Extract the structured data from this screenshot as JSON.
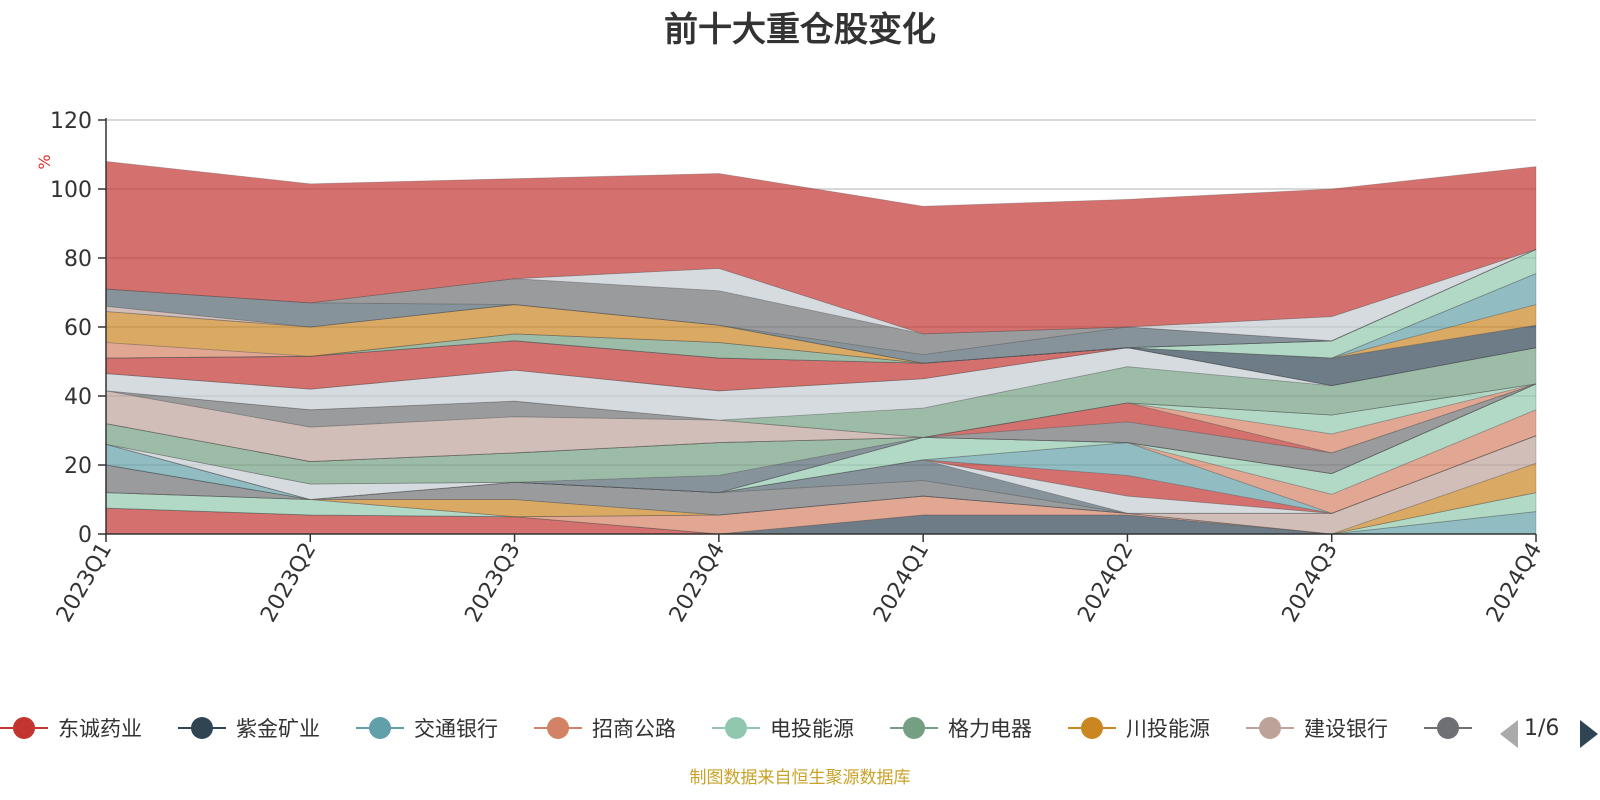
{
  "title": "前十大重仓股变化",
  "source_note": "制图数据来自恒生聚源数据库",
  "legend": {
    "items": [
      {
        "name": "东诚药业",
        "color": "#c23531"
      },
      {
        "name": "紫金矿业",
        "color": "#2f4554"
      },
      {
        "name": "交通银行",
        "color": "#61a0a8"
      },
      {
        "name": "招商公路",
        "color": "#d48265"
      },
      {
        "name": "电投能源",
        "color": "#91c7ae"
      },
      {
        "name": "格力电器",
        "color": "#749f83"
      },
      {
        "name": "川投能源",
        "color": "#ca8622"
      },
      {
        "name": "建设银行",
        "color": "#bda29a"
      },
      {
        "name": "",
        "color": "#6e7074"
      }
    ],
    "page_text": "1/6",
    "prev_color": "#aaaaaa",
    "next_color": "#2f4554"
  },
  "chart_data": {
    "type": "area",
    "stacked": true,
    "title": "前十大重仓股变化",
    "ylabel": "%",
    "ylim": [
      0,
      120
    ],
    "yticks": [
      0,
      20,
      40,
      60,
      80,
      100,
      120
    ],
    "categories": [
      "2023Q1",
      "2023Q2",
      "2023Q3",
      "2023Q4",
      "2024Q1",
      "2024Q2",
      "2024Q3",
      "2024Q4"
    ],
    "grid": true,
    "legend_position": "bottom",
    "layers": [
      {
        "color": "#c23531",
        "values": [
          7.5,
          5.5,
          5,
          0,
          0,
          0,
          0,
          0
        ]
      },
      {
        "color": "#2f4554",
        "values": [
          0,
          0,
          0,
          0,
          5.5,
          5.5,
          0,
          0
        ]
      },
      {
        "color": "#61a0a8",
        "values": [
          0,
          0,
          0,
          0,
          0,
          0,
          0,
          6.5
        ]
      },
      {
        "color": "#d48265",
        "values": [
          0,
          0,
          0,
          5.5,
          5.5,
          0.5,
          0,
          0
        ]
      },
      {
        "color": "#91c7ae",
        "values": [
          4.5,
          4.5,
          0,
          0,
          0,
          0,
          0,
          5.5
        ]
      },
      {
        "color": "#749f83",
        "values": [
          0,
          0,
          0,
          0,
          0,
          0,
          0,
          0
        ]
      },
      {
        "color": "#ca8622",
        "values": [
          0,
          0,
          5,
          0,
          0,
          0,
          0,
          8.5
        ]
      },
      {
        "color": "#bda29a",
        "values": [
          0,
          0,
          0,
          0,
          0,
          0,
          6,
          8
        ]
      },
      {
        "color": "#6e7074",
        "values": [
          8,
          0,
          5,
          6.5,
          4.5,
          0,
          0,
          0
        ]
      },
      {
        "color": "#546570",
        "values": [
          0,
          0,
          0,
          0,
          6,
          0,
          0,
          0
        ]
      },
      {
        "color": "#c4ccd3",
        "values": [
          0,
          0,
          0,
          0,
          0,
          5,
          0,
          0
        ]
      },
      {
        "color": "#c23531",
        "values": [
          0,
          0,
          0,
          0,
          0,
          6,
          0,
          0
        ]
      },
      {
        "color": "#61a0a8",
        "values": [
          6,
          0,
          0,
          0,
          0,
          9.5,
          0,
          0
        ]
      },
      {
        "color": "#d48265",
        "values": [
          0,
          0,
          0,
          0,
          0,
          0,
          5.5,
          7.5
        ]
      },
      {
        "color": "#91c7ae",
        "values": [
          0,
          0,
          0,
          0,
          6.5,
          0,
          6,
          7.5
        ]
      },
      {
        "color": "#749f83",
        "values": [
          0,
          0,
          0,
          0,
          0,
          0,
          0,
          0
        ]
      },
      {
        "color": "#c4ccd3",
        "values": [
          0,
          4.5,
          0,
          0,
          0,
          0,
          0,
          0
        ]
      },
      {
        "color": "#546570",
        "values": [
          0,
          0,
          0,
          5,
          0,
          0,
          0,
          0
        ]
      },
      {
        "color": "#749f83",
        "values": [
          6,
          6.5,
          8.5,
          9.5,
          0,
          0,
          0,
          0
        ]
      },
      {
        "color": "#6e7074",
        "values": [
          0,
          0,
          0,
          0,
          0,
          6,
          6,
          0
        ]
      },
      {
        "color": "#c23531",
        "values": [
          0,
          0,
          0,
          0,
          0,
          5.5,
          0,
          0
        ]
      },
      {
        "color": "#d48265",
        "values": [
          0,
          0,
          0,
          0,
          0,
          0,
          5.5,
          0
        ]
      },
      {
        "color": "#91c7ae",
        "values": [
          0,
          0,
          0,
          0,
          0,
          0,
          5.5,
          0
        ]
      },
      {
        "color": "#bda29a",
        "values": [
          9.5,
          10,
          10.5,
          6.5,
          0,
          0,
          0,
          0
        ]
      },
      {
        "color": "#6e7074",
        "values": [
          0,
          5,
          4.5,
          0,
          0,
          0,
          0,
          0
        ]
      },
      {
        "color": "#749f83",
        "values": [
          0,
          0,
          0,
          0,
          8.5,
          10.5,
          8.5,
          10.5
        ]
      },
      {
        "color": "#c4ccd3",
        "values": [
          5,
          6,
          9,
          8.5,
          8.5,
          5.5,
          0,
          0
        ]
      },
      {
        "color": "#6e7074",
        "values": [
          0,
          0,
          0,
          0,
          0,
          0,
          0,
          0
        ]
      },
      {
        "color": "#c23531",
        "values": [
          4.5,
          9.5,
          8.5,
          9.5,
          4.5,
          0,
          0,
          0
        ]
      },
      {
        "color": "#2f4554",
        "values": [
          0,
          0,
          0,
          0,
          0,
          0,
          8,
          6.5
        ]
      },
      {
        "color": "#ca8622",
        "values": [
          0,
          0,
          0,
          0,
          0,
          0,
          0,
          6
        ]
      },
      {
        "color": "#61a0a8",
        "values": [
          0,
          0,
          0,
          0,
          0,
          0,
          0,
          9
        ]
      },
      {
        "color": "#749f83",
        "values": [
          0,
          0,
          2,
          4.5,
          0,
          0,
          0,
          0
        ]
      },
      {
        "color": "#91c7ae",
        "values": [
          0,
          0,
          0,
          0,
          0,
          0,
          5,
          7
        ]
      },
      {
        "color": "#d48265",
        "values": [
          4.5,
          0,
          0,
          0,
          0,
          0,
          0,
          0
        ]
      },
      {
        "color": "#ca8622",
        "values": [
          9,
          8.5,
          8.5,
          5,
          0,
          0,
          0,
          0
        ]
      },
      {
        "color": "#c4ccd3",
        "values": [
          0,
          0,
          0,
          0,
          0,
          0,
          0,
          0
        ]
      },
      {
        "color": "#bda29a",
        "values": [
          1.5,
          0,
          0,
          0,
          0,
          0,
          0,
          0
        ]
      },
      {
        "color": "#546570",
        "values": [
          5,
          7,
          0,
          0,
          2.5,
          6,
          0,
          0
        ]
      },
      {
        "color": "#6e7074",
        "values": [
          0,
          0,
          7.5,
          10,
          6,
          0,
          0,
          0
        ]
      },
      {
        "color": "#c4ccd3",
        "values": [
          0,
          0,
          0,
          6.5,
          0,
          0,
          7,
          0
        ]
      },
      {
        "color": "#c23531",
        "values": [
          37,
          34.5,
          29,
          27.5,
          37,
          37,
          37,
          24
        ]
      }
    ]
  }
}
